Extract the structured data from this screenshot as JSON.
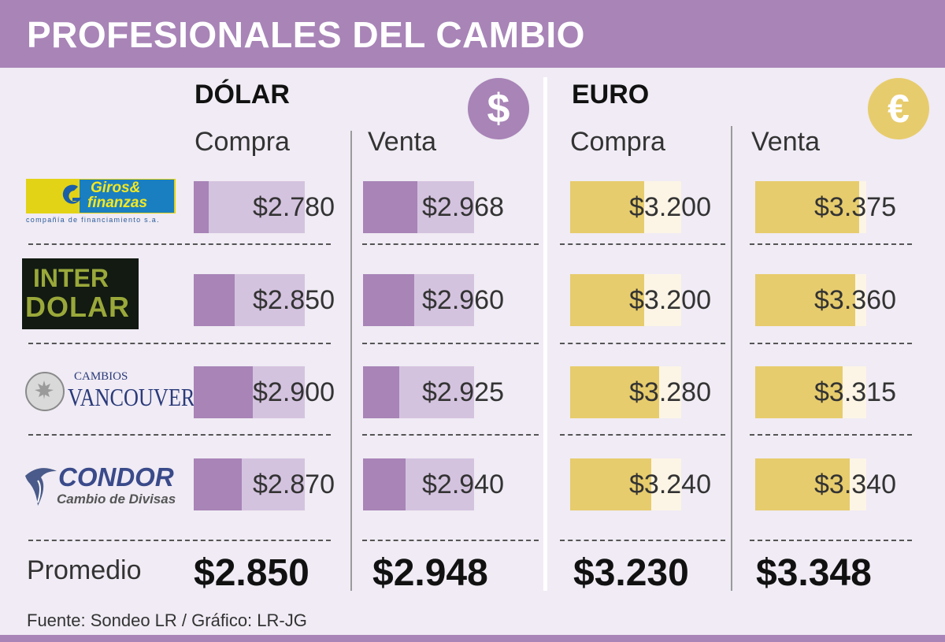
{
  "title": "PROFESIONALES DEL CAMBIO",
  "sections": {
    "dolar": {
      "label": "DÓLAR",
      "icon": "dollar-coin-icon",
      "symbol": "$",
      "color": "#a884b7"
    },
    "euro": {
      "label": "EURO",
      "icon": "euro-coin-icon",
      "symbol": "€",
      "color": "#e7cc6d"
    }
  },
  "columns": [
    "Compra",
    "Venta",
    "Compra",
    "Venta"
  ],
  "row_label_name": "Promedio",
  "source": "Fuente: Sondeo LR / Gráfico: LR-JG",
  "logos": {
    "giros": {
      "line1": "Giros&",
      "line2": "finanzas",
      "tagline": "compañía de financiamiento s.a."
    },
    "inter": {
      "line1": "INTER",
      "line2": "DOLAR"
    },
    "vancouver": {
      "line1": "CAMBIOS",
      "line2": "VANCOUVER"
    },
    "condor": {
      "line1": "CONDOR",
      "line2": "Cambio de Divisas"
    }
  },
  "colors": {
    "purple_dark": "#a884b7",
    "purple_light": "#d4c3df",
    "gold_dark": "#e7cc6d",
    "gold_light": "#fcf5e6",
    "header": "#a884b7"
  },
  "chart_data": {
    "type": "table",
    "rows": [
      "Giros & Finanzas",
      "Inter Dólar",
      "Cambios Vancouver",
      "Condor Cambio de Divisas"
    ],
    "series": [
      {
        "name": "Dólar Compra",
        "values": [
          2780,
          2850,
          2900,
          2870
        ],
        "labels": [
          "$2.780",
          "$2.850",
          "$2.900",
          "$2.870"
        ]
      },
      {
        "name": "Dólar Venta",
        "values": [
          2968,
          2960,
          2925,
          2940
        ],
        "labels": [
          "$2.968",
          "$2.960",
          "$2.925",
          "$2.940"
        ]
      },
      {
        "name": "Euro Compra",
        "values": [
          3200,
          3200,
          3280,
          3240
        ],
        "labels": [
          "$3.200",
          "$3.200",
          "$3.280",
          "$3.240"
        ]
      },
      {
        "name": "Euro Venta",
        "values": [
          3375,
          3360,
          3315,
          3340
        ],
        "labels": [
          "$3.375",
          "$3.360",
          "$3.315",
          "$3.340"
        ]
      }
    ],
    "averages": [
      "$2.850",
      "$2.948",
      "$3.230",
      "$3.348"
    ],
    "bar_fill": [
      0.28,
      0.46,
      0.7,
      0.87
    ]
  }
}
